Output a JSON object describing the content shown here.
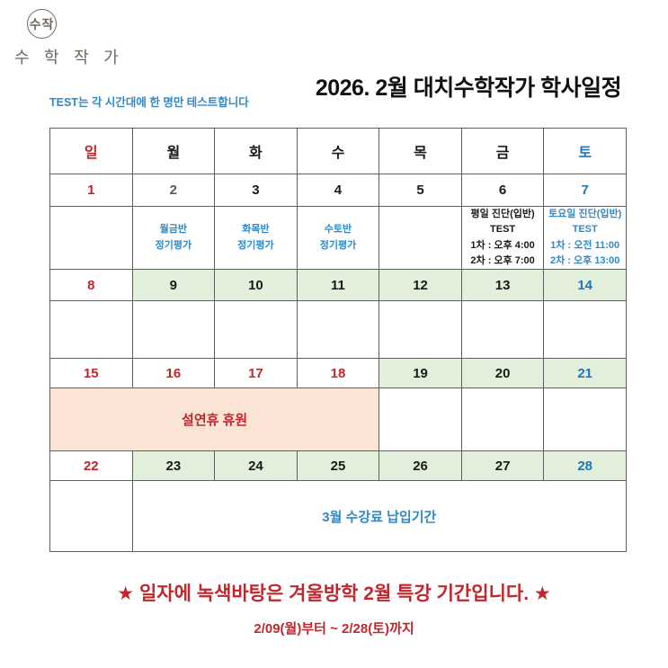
{
  "logo": {
    "seal_text": "수작",
    "wordmark": "수 학 작 가"
  },
  "header": {
    "note": "TEST는 각 시간대에 한 명만 테스트합니다",
    "title": "2026. 2월 대치수학작가 학사일정"
  },
  "calendar": {
    "weekdays": [
      {
        "text": "일",
        "color": "red"
      },
      {
        "text": "월"
      },
      {
        "text": "화"
      },
      {
        "text": "수"
      },
      {
        "text": "목"
      },
      {
        "text": "금"
      },
      {
        "text": "토",
        "color": "blue"
      }
    ],
    "rows": [
      {
        "type": "dates",
        "cells": [
          {
            "text": "1",
            "color": "red"
          },
          {
            "text": "2",
            "color": "gray"
          },
          {
            "text": "3"
          },
          {
            "text": "4"
          },
          {
            "text": "5"
          },
          {
            "text": "6"
          },
          {
            "text": "7",
            "color": "blue"
          }
        ]
      },
      {
        "type": "info",
        "cells": [
          {
            "lines": []
          },
          {
            "lines": [
              "월금반",
              "정기평가"
            ],
            "color": "lightblue"
          },
          {
            "lines": [
              "화목반",
              "정기평가"
            ],
            "color": "lightblue"
          },
          {
            "lines": [
              "수토반",
              "정기평가"
            ],
            "color": "lightblue"
          },
          {
            "lines": []
          },
          {
            "lines": [
              "평일 진단(입반)",
              "TEST",
              "1차 : 오후 4:00",
              "2차 : 오후 7:00"
            ]
          },
          {
            "lines": [
              "토요일 진단(입반)",
              "TEST",
              "1차 : 오전 11:00",
              "2차 : 오후 13:00"
            ],
            "color": "lightblue"
          }
        ]
      },
      {
        "type": "dates",
        "cells": [
          {
            "text": "8",
            "color": "red"
          },
          {
            "text": "9",
            "bg": "green"
          },
          {
            "text": "10",
            "bg": "green"
          },
          {
            "text": "11",
            "bg": "green"
          },
          {
            "text": "12",
            "bg": "green"
          },
          {
            "text": "13",
            "bg": "green"
          },
          {
            "text": "14",
            "color": "blue",
            "bg": "green"
          }
        ]
      },
      {
        "type": "content",
        "cells": [
          {
            "lines": []
          },
          {
            "lines": []
          },
          {
            "lines": []
          },
          {
            "lines": []
          },
          {
            "lines": []
          },
          {
            "lines": []
          },
          {
            "lines": []
          }
        ]
      },
      {
        "type": "dates",
        "cells": [
          {
            "text": "15",
            "color": "red"
          },
          {
            "text": "16",
            "color": "red"
          },
          {
            "text": "17",
            "color": "red"
          },
          {
            "text": "18",
            "color": "red"
          },
          {
            "text": "19",
            "bg": "green"
          },
          {
            "text": "20",
            "bg": "green"
          },
          {
            "text": "21",
            "color": "blue",
            "bg": "green"
          }
        ]
      },
      {
        "type": "content",
        "cells": [
          {
            "text": "설연휴 휴원",
            "color": "red",
            "bg": "peach",
            "span": 4,
            "big": true
          },
          {
            "lines": []
          },
          {
            "lines": []
          },
          {
            "lines": []
          }
        ]
      },
      {
        "type": "dates",
        "cells": [
          {
            "text": "22",
            "color": "red"
          },
          {
            "text": "23",
            "bg": "green"
          },
          {
            "text": "24",
            "bg": "green"
          },
          {
            "text": "25",
            "bg": "green"
          },
          {
            "text": "26",
            "bg": "green"
          },
          {
            "text": "27",
            "bg": "green"
          },
          {
            "text": "28",
            "color": "blue",
            "bg": "green"
          }
        ]
      },
      {
        "type": "content",
        "cells": [
          {
            "lines": []
          },
          {
            "text": "3월 수강료 납입기간",
            "color": "lightblue",
            "span": 6,
            "big": true
          }
        ]
      }
    ]
  },
  "footer": {
    "line1": "★ 일자에 녹색바탕은 겨울방학 2월 특강 기간입니다. ★",
    "line2": "2/09(월)부터 ~ 2/28(토)까지"
  }
}
